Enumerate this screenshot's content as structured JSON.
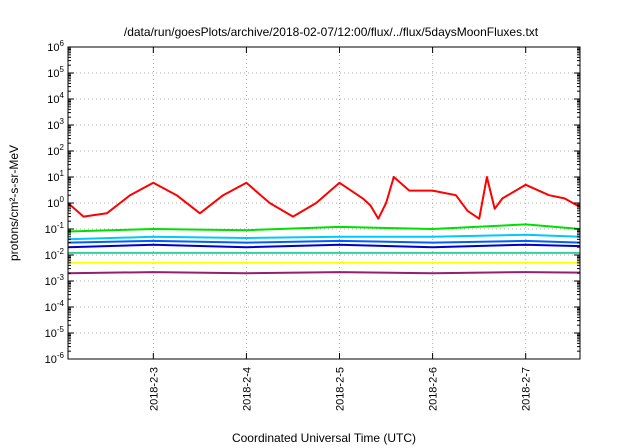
{
  "chart_data": {
    "type": "line",
    "title": "/data/run/goesPlots/archive/2018-02-07/12:00/flux/../flux/5daysMoonFluxes.txt",
    "xlabel": "Coordinated Universal Time (UTC)",
    "ylabel": "protons/cm²-s-sr-MeV",
    "yscale": "log",
    "ylim": [
      1e-06,
      1000000.0
    ],
    "xlim": [
      "2018-02-02 02:00",
      "2018-02-07 14:00"
    ],
    "grid": true,
    "x_ticks": [
      "2018-2-3",
      "2018-2-4",
      "2018-2-5",
      "2018-2-6",
      "2018-2-7"
    ],
    "y_ticks": [
      {
        "base": "10",
        "exp": "-6"
      },
      {
        "base": "10",
        "exp": "-5"
      },
      {
        "base": "10",
        "exp": "-4"
      },
      {
        "base": "10",
        "exp": "-3"
      },
      {
        "base": "10",
        "exp": "-2"
      },
      {
        "base": "10",
        "exp": "-1"
      },
      {
        "base": "10",
        "exp": "0"
      },
      {
        "base": "10",
        "exp": "1"
      },
      {
        "base": "10",
        "exp": "2"
      },
      {
        "base": "10",
        "exp": "3"
      },
      {
        "base": "10",
        "exp": "4"
      },
      {
        "base": "10",
        "exp": "5"
      },
      {
        "base": "10",
        "exp": "6"
      }
    ],
    "series": [
      {
        "color": "#ff0000",
        "x": [
          "2018-02-02 02:00",
          "2018-02-02 06:00",
          "2018-02-02 12:00",
          "2018-02-02 18:00",
          "2018-02-03 00:00",
          "2018-02-03 06:00",
          "2018-02-03 12:00",
          "2018-02-03 18:00",
          "2018-02-04 00:00",
          "2018-02-04 06:00",
          "2018-02-04 12:00",
          "2018-02-04 18:00",
          "2018-02-05 00:00",
          "2018-02-05 06:00",
          "2018-02-05 08:00",
          "2018-02-05 10:00",
          "2018-02-05 12:00",
          "2018-02-05 14:00",
          "2018-02-05 18:00",
          "2018-02-06 00:00",
          "2018-02-06 06:00",
          "2018-02-06 09:00",
          "2018-02-06 12:00",
          "2018-02-06 14:00",
          "2018-02-06 16:00",
          "2018-02-06 18:00",
          "2018-02-07 00:00",
          "2018-02-07 06:00",
          "2018-02-07 10:00",
          "2018-02-07 14:00"
        ],
        "y": [
          1.0,
          0.3,
          0.4,
          2.0,
          6.0,
          2.0,
          0.4,
          2.0,
          6.0,
          1.0,
          0.3,
          1.0,
          6.0,
          1.5,
          0.8,
          0.25,
          1.0,
          10,
          3.0,
          3.0,
          2.0,
          0.5,
          0.25,
          10,
          0.6,
          1.5,
          5.0,
          2.0,
          1.5,
          0.7
        ]
      },
      {
        "color": "#00e000",
        "x": [
          "2018-02-02 02:00",
          "2018-02-03 00:00",
          "2018-02-04 00:00",
          "2018-02-05 00:00",
          "2018-02-06 00:00",
          "2018-02-07 00:00",
          "2018-02-07 14:00"
        ],
        "y": [
          0.08,
          0.1,
          0.09,
          0.12,
          0.1,
          0.15,
          0.1
        ]
      },
      {
        "color": "#00c8ff",
        "x": [
          "2018-02-02 02:00",
          "2018-02-03 00:00",
          "2018-02-04 00:00",
          "2018-02-05 00:00",
          "2018-02-06 00:00",
          "2018-02-07 00:00",
          "2018-02-07 14:00"
        ],
        "y": [
          0.04,
          0.05,
          0.045,
          0.05,
          0.05,
          0.06,
          0.05
        ]
      },
      {
        "color": "#0060ff",
        "x": [
          "2018-02-02 02:00",
          "2018-02-03 00:00",
          "2018-02-04 00:00",
          "2018-02-05 00:00",
          "2018-02-06 00:00",
          "2018-02-07 00:00",
          "2018-02-07 14:00"
        ],
        "y": [
          0.03,
          0.035,
          0.03,
          0.035,
          0.03,
          0.035,
          0.03
        ]
      },
      {
        "color": "#0000cc",
        "x": [
          "2018-02-02 02:00",
          "2018-02-03 00:00",
          "2018-02-04 00:00",
          "2018-02-05 00:00",
          "2018-02-06 00:00",
          "2018-02-07 00:00",
          "2018-02-07 14:00"
        ],
        "y": [
          0.02,
          0.025,
          0.02,
          0.025,
          0.02,
          0.025,
          0.022
        ]
      },
      {
        "color": "#30d0a0",
        "x": [
          "2018-02-02 02:00",
          "2018-02-03 00:00",
          "2018-02-04 00:00",
          "2018-02-05 00:00",
          "2018-02-06 00:00",
          "2018-02-07 00:00",
          "2018-02-07 14:00"
        ],
        "y": [
          0.012,
          0.012,
          0.012,
          0.012,
          0.012,
          0.012,
          0.012
        ]
      },
      {
        "color": "#ffff00",
        "x": [
          "2018-02-02 02:00",
          "2018-02-03 00:00",
          "2018-02-04 00:00",
          "2018-02-05 00:00",
          "2018-02-06 00:00",
          "2018-02-07 00:00",
          "2018-02-07 14:00"
        ],
        "y": [
          0.005,
          0.005,
          0.005,
          0.005,
          0.005,
          0.005,
          0.005
        ]
      },
      {
        "color": "#902070",
        "x": [
          "2018-02-02 02:00",
          "2018-02-03 00:00",
          "2018-02-04 00:00",
          "2018-02-05 00:00",
          "2018-02-06 00:00",
          "2018-02-07 00:00",
          "2018-02-07 14:00"
        ],
        "y": [
          0.002,
          0.0022,
          0.002,
          0.0022,
          0.002,
          0.0022,
          0.0021
        ]
      }
    ]
  }
}
